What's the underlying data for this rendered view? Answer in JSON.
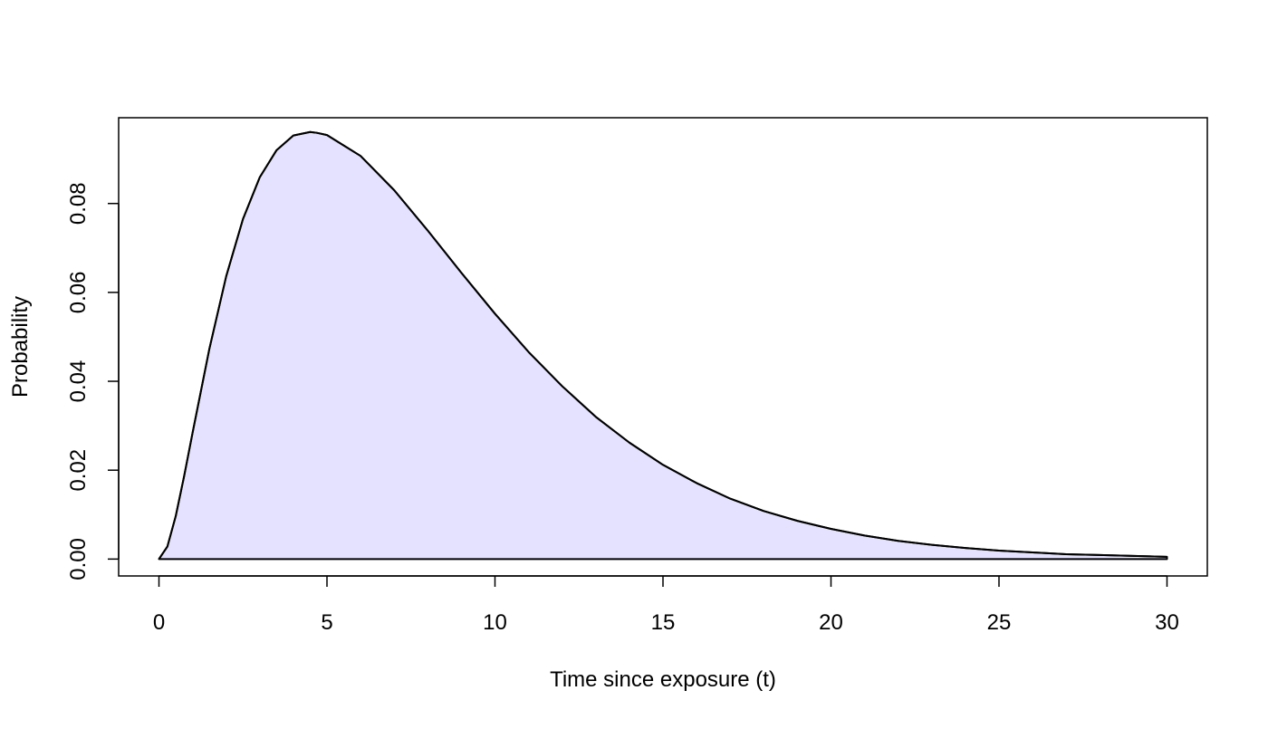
{
  "chart_data": {
    "type": "area",
    "title": "",
    "xlabel": "Time since exposure (t)",
    "ylabel": "Probability",
    "xlim": [
      -1.2,
      31.2
    ],
    "ylim": [
      -0.0038,
      0.0993
    ],
    "x_ticks": [
      0,
      5,
      10,
      15,
      20,
      25,
      30
    ],
    "x_tick_labels": [
      "0",
      "5",
      "10",
      "15",
      "20",
      "25",
      "30"
    ],
    "y_ticks": [
      0.0,
      0.02,
      0.04,
      0.06,
      0.08
    ],
    "y_tick_labels": [
      "0.00",
      "0.02",
      "0.04",
      "0.06",
      "0.08"
    ],
    "grid": false,
    "legend": "none",
    "fill_color": "#E5E2FF",
    "line_color": "#000000",
    "series": [
      {
        "x": [
          0,
          0.25,
          0.5,
          0.75,
          1,
          1.5,
          2,
          2.5,
          3,
          3.5,
          4,
          4.5,
          4.7,
          5,
          6,
          7,
          8,
          9,
          10,
          11,
          12,
          13,
          14,
          15,
          16,
          17,
          18,
          19,
          20,
          21,
          22,
          23,
          24,
          25,
          26,
          27,
          28,
          29,
          30
        ],
        "y": [
          0.0,
          0.0028,
          0.0097,
          0.0187,
          0.0284,
          0.0473,
          0.0636,
          0.0765,
          0.0859,
          0.092,
          0.0953,
          0.0961,
          0.0959,
          0.0954,
          0.0907,
          0.083,
          0.0739,
          0.0644,
          0.0552,
          0.0466,
          0.0389,
          0.032,
          0.0262,
          0.0212,
          0.0171,
          0.0136,
          0.0108,
          0.0086,
          0.0068,
          0.0053,
          0.0041,
          0.0032,
          0.0025,
          0.0019,
          0.0015,
          0.0011,
          0.0009,
          0.0007,
          0.0005
        ]
      }
    ]
  }
}
